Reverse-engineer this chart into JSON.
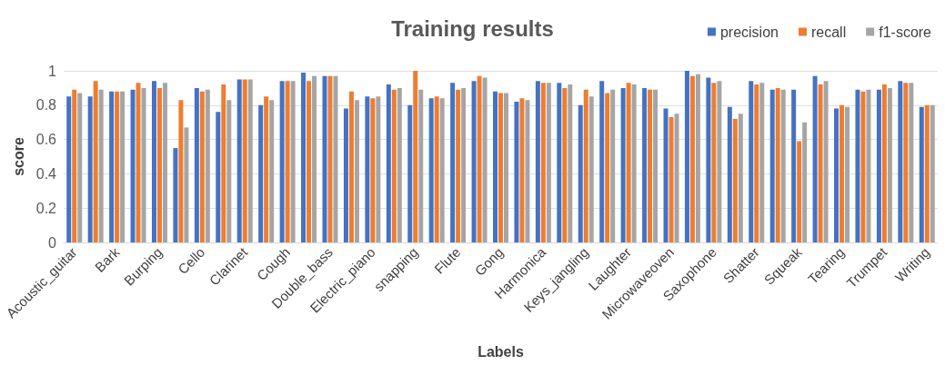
{
  "chart_data": {
    "type": "bar",
    "title": "Training results",
    "xlabel": "Labels",
    "ylabel": "score",
    "categories": [
      "Acoustic_guitar",
      null,
      "Bark",
      null,
      "Burping",
      null,
      "Cello",
      null,
      "Clarinet",
      null,
      "Cough",
      null,
      "Double_bass",
      null,
      "Electric_piano",
      null,
      "snapping",
      null,
      "Flute",
      null,
      "Gong",
      null,
      "Harmonica",
      null,
      "Keys_jangling",
      null,
      "Laughter",
      null,
      "Microwaveoven",
      null,
      "Saxophone",
      null,
      "Shatter",
      null,
      "Squeak",
      null,
      "Tearing",
      null,
      "Trumpet",
      null,
      "Writing"
    ],
    "series": [
      {
        "name": "precision",
        "color": "#4472c4",
        "values": [
          0.85,
          0.85,
          0.88,
          0.89,
          0.94,
          0.55,
          0.9,
          0.76,
          0.95,
          0.8,
          0.94,
          0.99,
          0.97,
          0.78,
          0.85,
          0.92,
          0.8,
          0.84,
          0.93,
          0.94,
          0.88,
          0.82,
          0.94,
          0.93,
          0.8,
          0.94,
          0.9,
          0.9,
          0.78,
          1.0,
          0.96,
          0.79,
          0.94,
          0.89,
          0.89,
          0.97,
          0.78,
          0.89,
          0.89,
          0.94,
          0.79
        ]
      },
      {
        "name": "recall",
        "color": "#ed7d31",
        "values": [
          0.89,
          0.94,
          0.88,
          0.93,
          0.9,
          0.83,
          0.88,
          0.92,
          0.95,
          0.85,
          0.94,
          0.94,
          0.97,
          0.88,
          0.84,
          0.89,
          1.0,
          0.85,
          0.89,
          0.97,
          0.87,
          0.84,
          0.93,
          0.9,
          0.89,
          0.87,
          0.93,
          0.89,
          0.73,
          0.97,
          0.93,
          0.72,
          0.92,
          0.9,
          0.59,
          0.92,
          0.8,
          0.88,
          0.92,
          0.93,
          0.8
        ]
      },
      {
        "name": "f1-score",
        "color": "#a5a5a5",
        "values": [
          0.87,
          0.89,
          0.88,
          0.9,
          0.93,
          0.67,
          0.89,
          0.83,
          0.95,
          0.83,
          0.94,
          0.97,
          0.97,
          0.83,
          0.85,
          0.9,
          0.89,
          0.84,
          0.9,
          0.96,
          0.87,
          0.83,
          0.93,
          0.92,
          0.85,
          0.89,
          0.92,
          0.89,
          0.75,
          0.98,
          0.94,
          0.75,
          0.93,
          0.89,
          0.7,
          0.94,
          0.79,
          0.89,
          0.9,
          0.93,
          0.8
        ]
      }
    ],
    "ylim": [
      0,
      1
    ],
    "yticks": [
      0,
      0.2,
      0.4,
      0.6,
      0.8,
      1
    ],
    "grid": "y",
    "legend": "top right"
  }
}
